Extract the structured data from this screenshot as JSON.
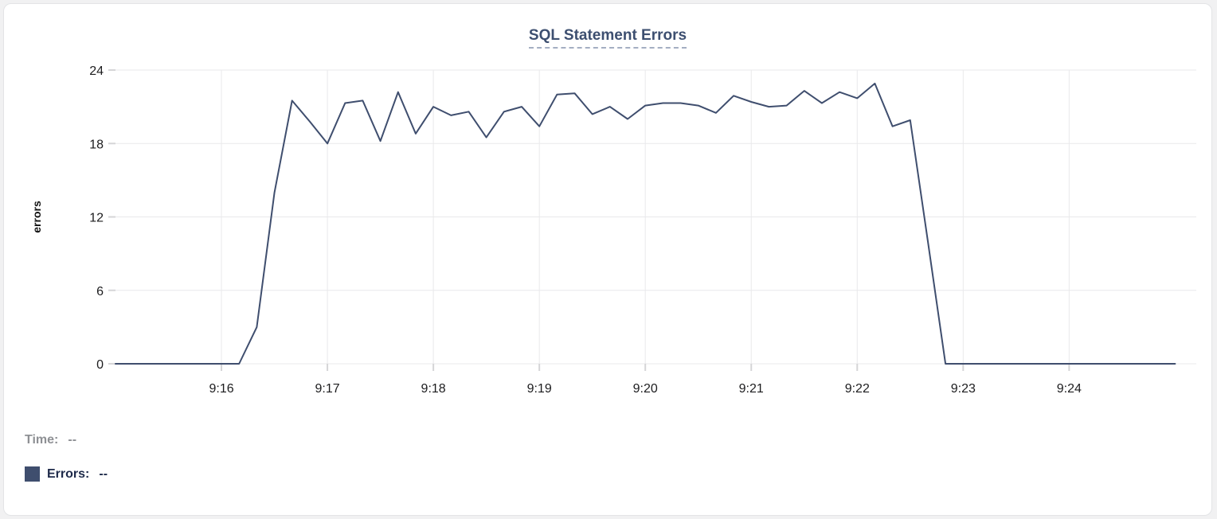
{
  "card_title": "SQL Statement Errors",
  "legend": {
    "time_label": "Time:",
    "time_value": "--",
    "errors_label": "Errors:",
    "errors_value": "--"
  },
  "colors": {
    "line": "#3F4E6E",
    "swatch": "#3F4E6E",
    "grid": "#e9e9eb",
    "tick": "#d5d5d7",
    "title": "#3d4f70",
    "legend_time": "#8e9094",
    "legend_errors": "#1e2a4a"
  },
  "chart_data": {
    "type": "line",
    "title": "SQL Statement Errors",
    "xlabel": "",
    "ylabel": "errors",
    "ylim": [
      0,
      24
    ],
    "yticks": [
      0,
      6,
      12,
      18,
      24
    ],
    "grid": true,
    "legend_position": "bottom-left",
    "x_axis_note": "time of day, data sampled every 10 seconds starting 9:15:00",
    "xlim_sec": [
      0,
      612
    ],
    "xticks": [
      {
        "label": "9:16",
        "sec": 60
      },
      {
        "label": "9:17",
        "sec": 120
      },
      {
        "label": "9:18",
        "sec": 180
      },
      {
        "label": "9:19",
        "sec": 240
      },
      {
        "label": "9:20",
        "sec": 300
      },
      {
        "label": "9:21",
        "sec": 360
      },
      {
        "label": "9:22",
        "sec": 420
      },
      {
        "label": "9:23",
        "sec": 480
      },
      {
        "label": "9:24",
        "sec": 540
      }
    ],
    "series": [
      {
        "name": "Errors",
        "color": "#3F4E6E",
        "start_sec": 0,
        "interval_sec": 10,
        "values": [
          0,
          0,
          0,
          0,
          0,
          0,
          0,
          0,
          3,
          14,
          21.5,
          19.8,
          18,
          21.3,
          21.5,
          18.2,
          22.2,
          18.8,
          21,
          20.3,
          20.6,
          18.5,
          20.6,
          21,
          19.4,
          22,
          22.1,
          20.4,
          21,
          20,
          21.1,
          21.3,
          21.3,
          21.1,
          20.5,
          21.9,
          21.4,
          21,
          21.1,
          22.3,
          21.3,
          22.2,
          21.7,
          22.9,
          19.4,
          19.9,
          10,
          0,
          0,
          0,
          0,
          0,
          0,
          0,
          0,
          0,
          0,
          0,
          0,
          0,
          0
        ]
      }
    ]
  }
}
